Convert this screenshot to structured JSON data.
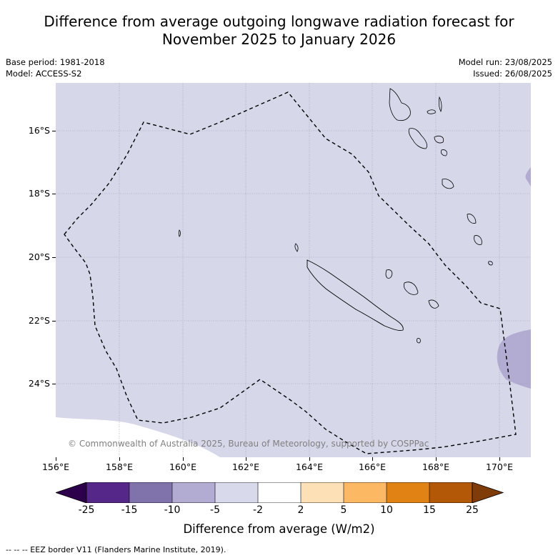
{
  "title": {
    "line1": "Difference from average outgoing longwave radiation forecast for",
    "line2": "November 2025 to January 2026"
  },
  "meta_left": {
    "base_period": "Base period: 1981-2018",
    "model": "Model: ACCESS-S2"
  },
  "meta_right": {
    "model_run": "Model run: 23/08/2025",
    "issued": "Issued: 26/08/2025"
  },
  "map": {
    "background_color": "#d7d7ea",
    "lat_labels": [
      "16°S",
      "18°S",
      "20°S",
      "22°S",
      "24°S"
    ],
    "lon_labels": [
      "156°E",
      "158°E",
      "160°E",
      "162°E",
      "164°E",
      "166°E",
      "168°E",
      "170°E"
    ],
    "copyright": "© Commonwealth of Australia 2025, Bureau of Meteorology, supported by COSPPac"
  },
  "colorbar": {
    "colors": [
      "#2d004b",
      "#542788",
      "#8073ac",
      "#b2abd2",
      "#d8daeb",
      "#ffffff",
      "#fee0b6",
      "#fdb863",
      "#e08214",
      "#b35806",
      "#7f3b08"
    ],
    "labels": [
      "-25",
      "-15",
      "-10",
      "-5",
      "-2",
      "2",
      "5",
      "10",
      "15",
      "25"
    ],
    "title": "Difference from average (W/m2)"
  },
  "footer": "--  --  -- EEZ border V11 (Flanders Marine Institute, 2019)."
}
